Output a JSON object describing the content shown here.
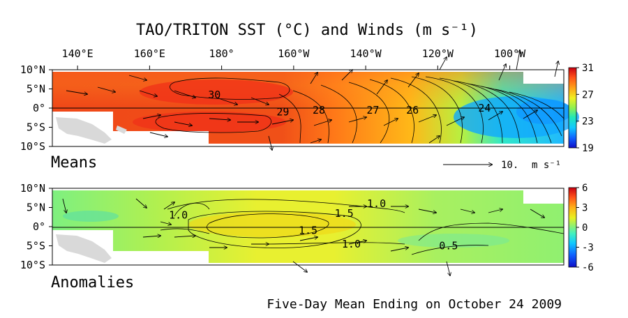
{
  "title": "TAO/TRITON SST (°C) and Winds (m s⁻¹)",
  "footer": "Five-Day Mean Ending on October 24 2009",
  "colors": {
    "land": "#d9d9d9",
    "missing": "#ffffff",
    "equator": "#000000"
  },
  "chart_data": [
    {
      "type": "heatmap",
      "panel_label": "Means",
      "x_ticks": [
        "140°E",
        "160°E",
        "180°",
        "160°W",
        "140°W",
        "120°W",
        "100°W"
      ],
      "x_tick_lon": [
        140,
        160,
        180,
        200,
        220,
        240,
        260
      ],
      "y_ticks": [
        "10°N",
        "5°N",
        "0°",
        "5°S",
        "10°S"
      ],
      "y_tick_lat": [
        10,
        5,
        0,
        -5,
        -10
      ],
      "xlim_lon": [
        133,
        275
      ],
      "ylim_lat": [
        -10,
        10
      ],
      "colorbar": {
        "min": 19,
        "max": 31,
        "ticks": [
          "31",
          "27",
          "23",
          "19"
        ],
        "tick_values": [
          31,
          27,
          23,
          19
        ]
      },
      "contour_labels": [
        {
          "text": "30",
          "lon": 178,
          "lat": 3.5
        },
        {
          "text": "29",
          "lon": 197,
          "lat": -1
        },
        {
          "text": "28",
          "lon": 207,
          "lat": -0.5
        },
        {
          "text": "27",
          "lon": 222,
          "lat": -0.5
        },
        {
          "text": "26",
          "lon": 233,
          "lat": -0.5
        },
        {
          "text": "24",
          "lon": 253,
          "lat": 0
        }
      ],
      "wind_scale": {
        "label": "10.",
        "unit": "m s⁻¹",
        "speed": 10
      }
    },
    {
      "type": "heatmap",
      "panel_label": "Anomalies",
      "x_ticks": [],
      "y_ticks": [
        "10°N",
        "5°N",
        "0°",
        "5°S",
        "10°S"
      ],
      "y_tick_lat": [
        10,
        5,
        0,
        -5,
        -10
      ],
      "xlim_lon": [
        133,
        275
      ],
      "ylim_lat": [
        -10,
        10
      ],
      "colorbar": {
        "min": -6,
        "max": 6,
        "ticks": [
          "6",
          "3",
          "0",
          "-3",
          "-6"
        ],
        "tick_values": [
          6,
          3,
          0,
          -3,
          -6
        ]
      },
      "contour_labels": [
        {
          "text": "1.0",
          "lon": 223,
          "lat": 6
        },
        {
          "text": "1.5",
          "lon": 214,
          "lat": 3.5
        },
        {
          "text": "1.5",
          "lon": 204,
          "lat": -1
        },
        {
          "text": "1.0",
          "lon": 216,
          "lat": -4.5
        },
        {
          "text": "0.5",
          "lon": 243,
          "lat": -5
        },
        {
          "text": "1.0",
          "lon": 168,
          "lat": 3
        }
      ]
    }
  ]
}
